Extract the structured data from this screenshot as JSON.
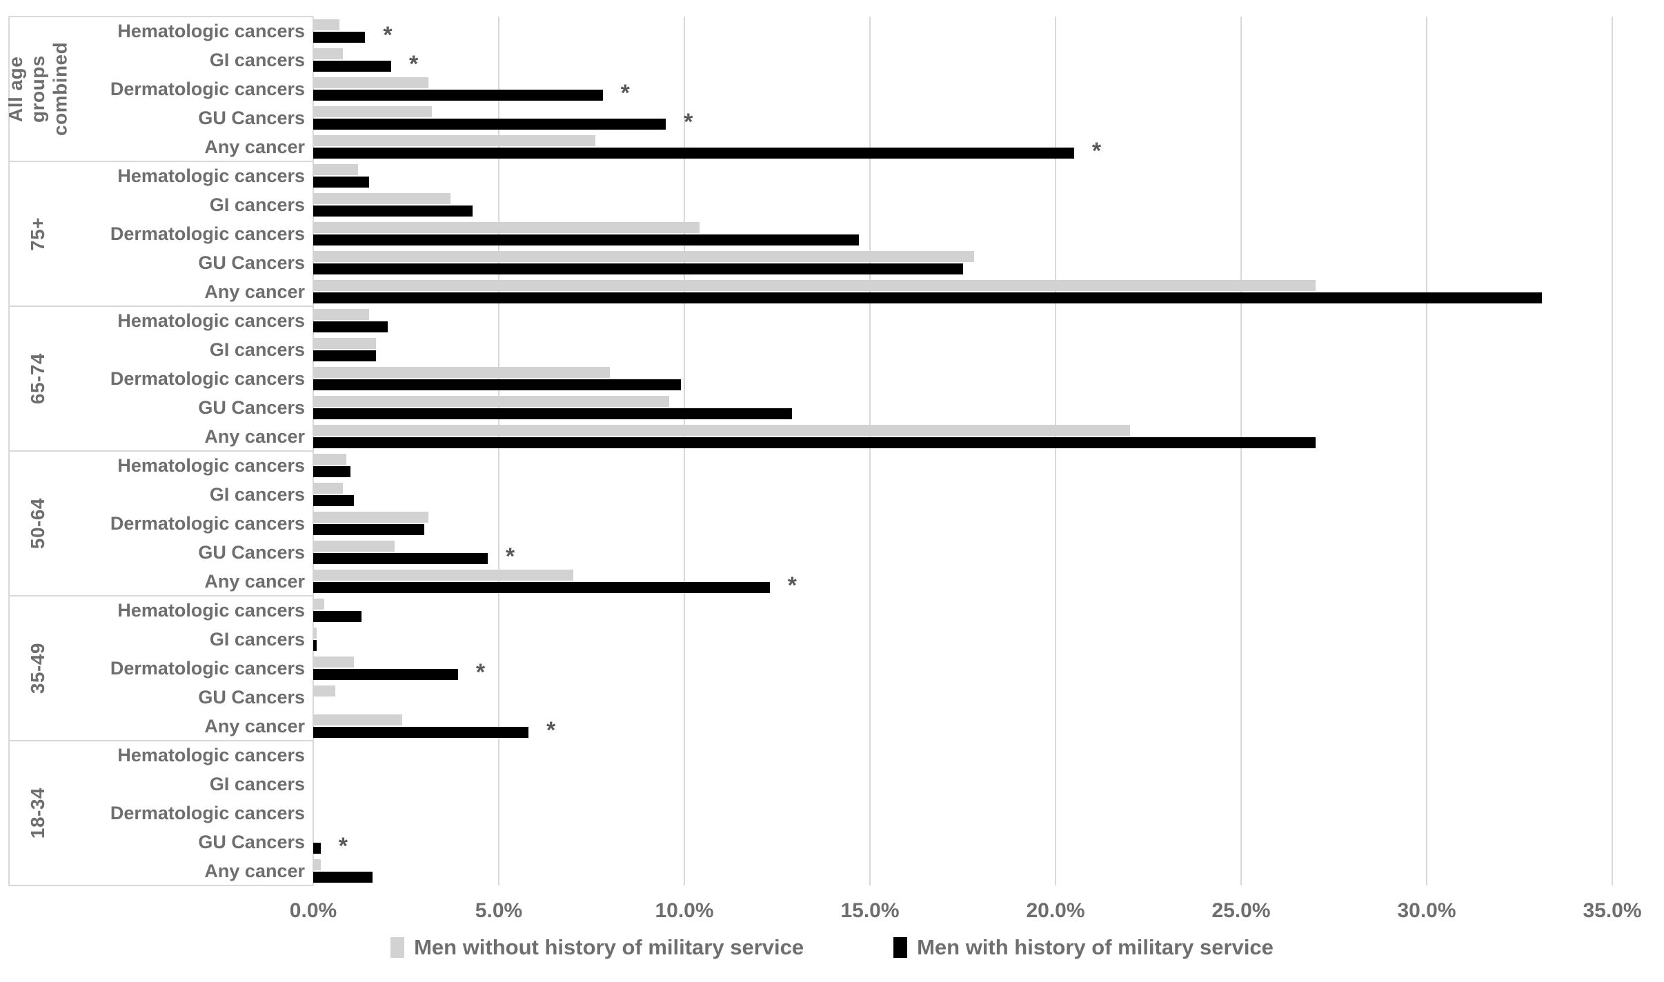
{
  "chart_data": {
    "type": "bar",
    "orientation": "horizontal",
    "title": "",
    "xlabel": "",
    "ylabel": "",
    "significance_marker": "*",
    "x_axis": {
      "min": 0,
      "max": 35,
      "tick_step": 5,
      "ticks": [
        "0.0%",
        "5.0%",
        "10.0%",
        "15.0%",
        "20.0%",
        "25.0%",
        "30.0%",
        "35.0%"
      ],
      "grid": true
    },
    "legend": [
      {
        "label": "Men without history of military service",
        "color": "#d2d2d2"
      },
      {
        "label": "Men with history of military service",
        "color": "#000000"
      }
    ],
    "groups": [
      {
        "label": "All age groups combined",
        "rows": [
          {
            "category": "Hematologic cancers",
            "without": 0.7,
            "with": 1.4,
            "significant": true
          },
          {
            "category": "GI cancers",
            "without": 0.8,
            "with": 2.1,
            "significant": true
          },
          {
            "category": "Dermatologic cancers",
            "without": 3.1,
            "with": 7.8,
            "significant": true
          },
          {
            "category": "GU Cancers",
            "without": 3.2,
            "with": 9.5,
            "significant": true
          },
          {
            "category": "Any cancer",
            "without": 7.6,
            "with": 20.5,
            "significant": true
          }
        ]
      },
      {
        "label": "75+",
        "rows": [
          {
            "category": "Hematologic cancers",
            "without": 1.2,
            "with": 1.5,
            "significant": false
          },
          {
            "category": "GI cancers",
            "without": 3.7,
            "with": 4.3,
            "significant": false
          },
          {
            "category": "Dermatologic cancers",
            "without": 10.4,
            "with": 14.7,
            "significant": false
          },
          {
            "category": "GU Cancers",
            "without": 17.8,
            "with": 17.5,
            "significant": false
          },
          {
            "category": "Any cancer",
            "without": 27.0,
            "with": 33.1,
            "significant": false
          }
        ]
      },
      {
        "label": "65-74",
        "rows": [
          {
            "category": "Hematologic cancers",
            "without": 1.5,
            "with": 2.0,
            "significant": false
          },
          {
            "category": "GI cancers",
            "without": 1.7,
            "with": 1.7,
            "significant": false
          },
          {
            "category": "Dermatologic cancers",
            "without": 8.0,
            "with": 9.9,
            "significant": false
          },
          {
            "category": "GU Cancers",
            "without": 9.6,
            "with": 12.9,
            "significant": false
          },
          {
            "category": "Any cancer",
            "without": 22.0,
            "with": 27.0,
            "significant": false
          }
        ]
      },
      {
        "label": "50-64",
        "rows": [
          {
            "category": "Hematologic cancers",
            "without": 0.9,
            "with": 1.0,
            "significant": false
          },
          {
            "category": "GI cancers",
            "without": 0.8,
            "with": 1.1,
            "significant": false
          },
          {
            "category": "Dermatologic cancers",
            "without": 3.1,
            "with": 3.0,
            "significant": false
          },
          {
            "category": "GU Cancers",
            "without": 2.2,
            "with": 4.7,
            "significant": true
          },
          {
            "category": "Any cancer",
            "without": 7.0,
            "with": 12.3,
            "significant": true
          }
        ]
      },
      {
        "label": "35-49",
        "rows": [
          {
            "category": "Hematologic cancers",
            "without": 0.3,
            "with": 1.3,
            "significant": false
          },
          {
            "category": "GI cancers",
            "without": 0.1,
            "with": 0.1,
            "significant": false
          },
          {
            "category": "Dermatologic cancers",
            "without": 1.1,
            "with": 3.9,
            "significant": true
          },
          {
            "category": "GU Cancers",
            "without": 0.6,
            "with": 0.0,
            "significant": false
          },
          {
            "category": "Any cancer",
            "without": 2.4,
            "with": 5.8,
            "significant": true
          }
        ]
      },
      {
        "label": "18-34",
        "rows": [
          {
            "category": "Hematologic cancers",
            "without": 0.0,
            "with": 0.0,
            "significant": false
          },
          {
            "category": "GI cancers",
            "without": 0.0,
            "with": 0.0,
            "significant": false
          },
          {
            "category": "Dermatologic cancers",
            "without": 0.0,
            "with": 0.0,
            "significant": false
          },
          {
            "category": "GU Cancers",
            "without": 0.0,
            "with": 0.2,
            "significant": true
          },
          {
            "category": "Any cancer",
            "without": 0.2,
            "with": 1.6,
            "significant": false
          }
        ]
      }
    ],
    "colors": {
      "bar_without": "#d2d2d2",
      "bar_with": "#000000",
      "gridline": "#d9d9d9",
      "text": "#6e6e6e",
      "asterisk": "#595959"
    }
  }
}
